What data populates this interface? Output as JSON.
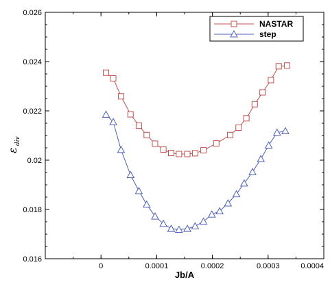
{
  "chart_data": {
    "type": "line",
    "xlabel": "Jb/A",
    "ylabel": "ε",
    "ylabel_subscript": "div",
    "xlim": [
      -0.0001,
      0.0004
    ],
    "ylim": [
      0.016,
      0.026
    ],
    "x_ticks": [
      0,
      0.0001,
      0.0002,
      0.0003,
      0.0004
    ],
    "x_tick_labels": [
      "0",
      "0.0001",
      "0.0002",
      "0.0003",
      "0.0004"
    ],
    "y_ticks": [
      0.016,
      0.018,
      0.02,
      0.022,
      0.024,
      0.026
    ],
    "y_tick_labels": [
      "0.016",
      "0.018",
      "0.02",
      "0.022",
      "0.024",
      "0.026"
    ],
    "grid": false,
    "legend_position": "top-right",
    "series": [
      {
        "name": "NASTAR",
        "color": "#c0504d",
        "marker": "square",
        "x": [
          9e-06,
          2.2e-05,
          3.6e-05,
          5.3e-05,
          6.8e-05,
          8.2e-05,
          9.7e-05,
          0.000112,
          0.000126,
          0.00014,
          0.000155,
          0.000169,
          0.000184,
          0.000207,
          0.000232,
          0.000247,
          0.000261,
          0.000276,
          0.00029,
          0.000305,
          0.000319,
          0.000334
        ],
        "y": [
          0.02355,
          0.02332,
          0.02259,
          0.02186,
          0.0214,
          0.02102,
          0.02067,
          0.02043,
          0.02029,
          0.02025,
          0.02025,
          0.02028,
          0.0204,
          0.02068,
          0.02102,
          0.02132,
          0.0217,
          0.02227,
          0.02275,
          0.02325,
          0.02381,
          0.02384
        ]
      },
      {
        "name": "step",
        "color": "#4f5fb8",
        "marker": "triangle",
        "x": [
          9e-06,
          2.2e-05,
          3.6e-05,
          5.3e-05,
          6.8e-05,
          8.2e-05,
          9.7e-05,
          0.000112,
          0.000126,
          0.00014,
          0.000155,
          0.000169,
          0.000184,
          0.000199,
          0.000213,
          0.000228,
          0.000243,
          0.000257,
          0.000272,
          0.000287,
          0.000301,
          0.000316,
          0.000331
        ],
        "y": [
          0.02185,
          0.02155,
          0.02042,
          0.0194,
          0.01875,
          0.0182,
          0.01772,
          0.01742,
          0.01722,
          0.01718,
          0.01722,
          0.01732,
          0.01751,
          0.0178,
          0.01793,
          0.01825,
          0.01862,
          0.01906,
          0.01952,
          0.02005,
          0.0206,
          0.02112,
          0.02118
        ]
      }
    ]
  }
}
